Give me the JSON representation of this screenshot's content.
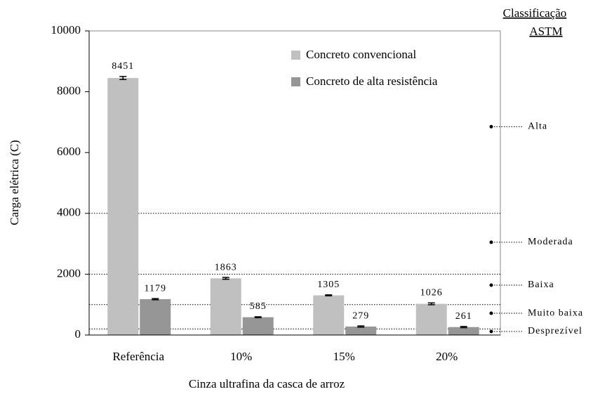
{
  "chart_data": {
    "type": "bar",
    "x_label": "Cinza ultrafina da casca de arroz",
    "y_label": "Carga elétrica (C)",
    "categories": [
      "Referência",
      "10%",
      "15%",
      "20%"
    ],
    "series": [
      {
        "name": "Concreto convencional",
        "color": "#c0c0c0",
        "values": [
          8451,
          1863,
          1305,
          1026
        ],
        "errors": [
          50,
          30,
          15,
          30
        ]
      },
      {
        "name": "Concreto de alta resistência",
        "color": "#969696",
        "values": [
          1179,
          585,
          279,
          261
        ],
        "errors": [
          20,
          15,
          20,
          20
        ]
      }
    ],
    "ylim": [
      0,
      10000
    ],
    "yticks": [
      0,
      2000,
      4000,
      6000,
      8000,
      10000
    ],
    "thresholds": [
      4000,
      2000,
      1000,
      200
    ],
    "classification_title": [
      "Classificação",
      "ASTM"
    ],
    "classes": [
      {
        "label": "Alta",
        "value": 6850
      },
      {
        "label": "Moderada",
        "value": 3050
      },
      {
        "label": "Baixa",
        "value": 1640
      },
      {
        "label": "Muito baixa",
        "value": 715
      },
      {
        "label": "Desprezível",
        "value": 115
      }
    ]
  }
}
